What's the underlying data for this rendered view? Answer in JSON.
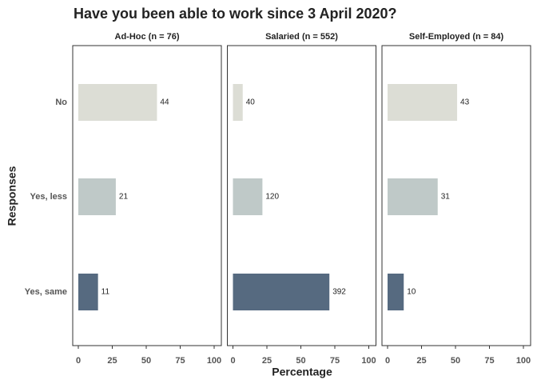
{
  "chart_data": {
    "type": "bar",
    "orientation": "horizontal",
    "title": "Have you been able to work since 3 April 2020?",
    "xlabel": "Percentage",
    "ylabel": "Responses",
    "categories": [
      "No",
      "Yes, less",
      "Yes, same"
    ],
    "colors": [
      "#dcddd5",
      "#bfc9c8",
      "#566a80"
    ],
    "xlim": [
      0,
      100
    ],
    "xticks": [
      0,
      25,
      50,
      75,
      100
    ],
    "facets": [
      {
        "title": "Ad-Hoc (n = 76)",
        "values": [
          57.9,
          27.6,
          14.5
        ],
        "counts": [
          44,
          21,
          11
        ]
      },
      {
        "title": "Salaried (n = 552)",
        "values": [
          7.2,
          21.7,
          71.0
        ],
        "counts": [
          40,
          120,
          392
        ]
      },
      {
        "title": "Self-Employed (n = 84)",
        "values": [
          51.2,
          36.9,
          11.9
        ],
        "counts": [
          43,
          31,
          10
        ]
      }
    ]
  }
}
